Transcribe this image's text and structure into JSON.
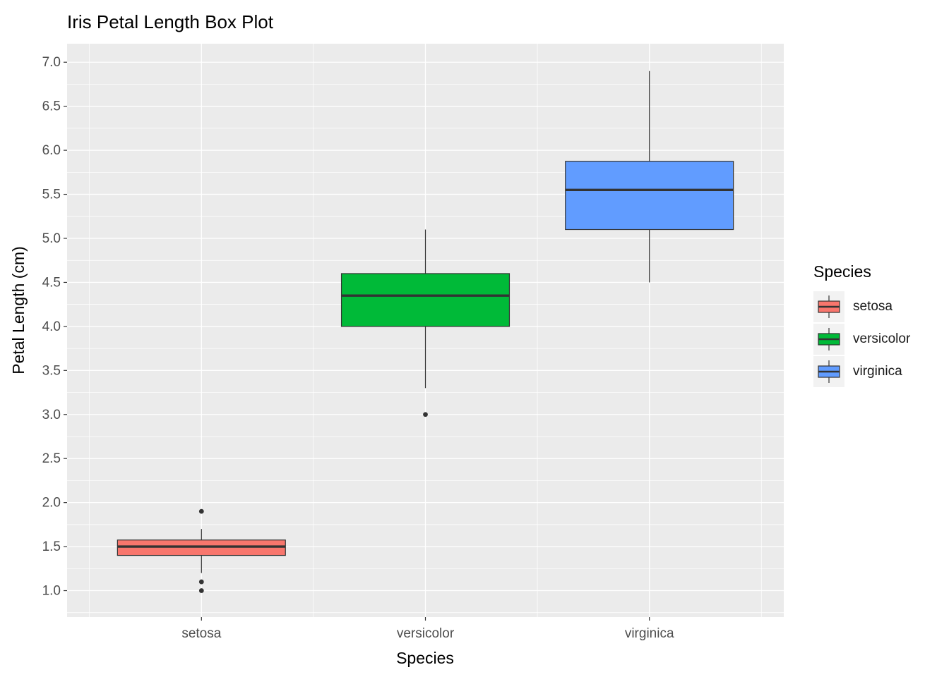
{
  "title": "Iris Petal Length Box Plot",
  "x_axis_title": "Species",
  "y_axis_title": "Petal Length (cm)",
  "legend": {
    "title": "Species",
    "items": [
      {
        "label": "setosa",
        "color": "#F8766D"
      },
      {
        "label": "versicolor",
        "color": "#00BA38"
      },
      {
        "label": "virginica",
        "color": "#619CFF"
      }
    ]
  },
  "chart_data": {
    "type": "boxplot",
    "title": "Iris Petal Length Box Plot",
    "xlabel": "Species",
    "ylabel": "Petal Length (cm)",
    "categories": [
      "setosa",
      "versicolor",
      "virginica"
    ],
    "series": [
      {
        "name": "setosa",
        "fill": "#F8766D",
        "whisker_low": 1.2,
        "q1": 1.4,
        "median": 1.5,
        "q3": 1.575,
        "whisker_high": 1.7,
        "outliers": [
          1.9,
          1.1,
          1.0
        ]
      },
      {
        "name": "versicolor",
        "fill": "#00BA38",
        "whisker_low": 3.3,
        "q1": 4.0,
        "median": 4.35,
        "q3": 4.6,
        "whisker_high": 5.1,
        "outliers": [
          3.0
        ]
      },
      {
        "name": "virginica",
        "fill": "#619CFF",
        "whisker_low": 4.5,
        "q1": 5.1,
        "median": 5.55,
        "q3": 5.875,
        "whisker_high": 6.9,
        "outliers": []
      }
    ],
    "y_ticks": [
      1.0,
      1.5,
      2.0,
      2.5,
      3.0,
      3.5,
      4.0,
      4.5,
      5.0,
      5.5,
      6.0,
      6.5,
      7.0
    ],
    "y_tick_labels": [
      "1.0",
      "1.5",
      "2.0",
      "2.5",
      "3.0",
      "3.5",
      "4.0",
      "4.5",
      "5.0",
      "5.5",
      "6.0",
      "6.5",
      "7.0"
    ],
    "ylim": [
      0.7,
      7.21
    ],
    "grid": true,
    "legend_position": "right",
    "colors": {
      "panel_bg": "#EBEBEB",
      "grid": "#FFFFFF",
      "box_stroke": "#333333",
      "tick_text": "#4D4D4D",
      "title_text": "#000000",
      "legend_key_bg": "#F2F2F2"
    }
  }
}
